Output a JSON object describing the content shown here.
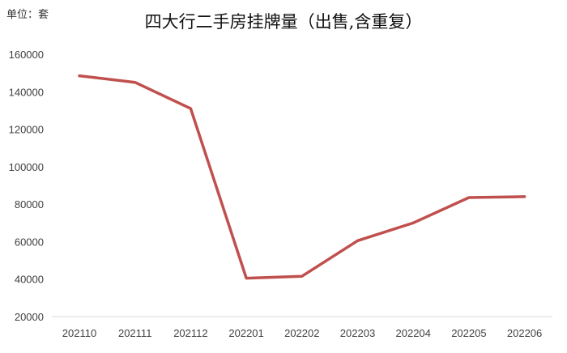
{
  "chart_data": {
    "type": "line",
    "title": "四大行二手房挂牌量（出售,含重复）",
    "unit_label": "单位：套",
    "categories": [
      "202110",
      "202111",
      "202112",
      "202201",
      "202202",
      "202203",
      "202204",
      "202205",
      "202206"
    ],
    "series": [
      {
        "values": [
          148500,
          145000,
          131000,
          40500,
          41500,
          60500,
          70000,
          83500,
          84000
        ],
        "color": "#c0504d"
      }
    ],
    "ylim": [
      20000,
      160000
    ],
    "yticks": [
      20000,
      40000,
      60000,
      80000,
      100000,
      120000,
      140000,
      160000
    ],
    "grid": false,
    "legend": "none"
  }
}
